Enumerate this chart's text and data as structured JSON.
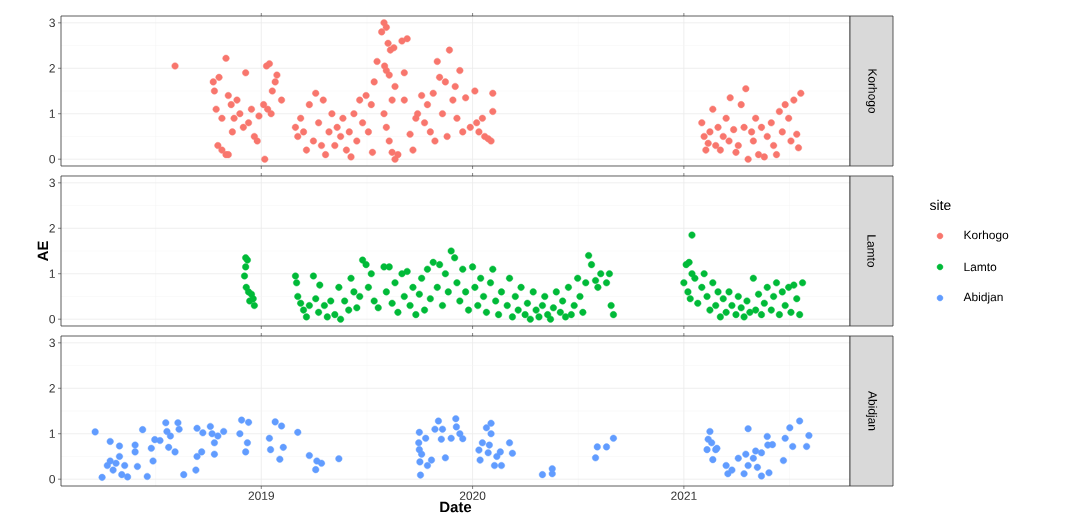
{
  "chart_data": [
    {
      "type": "scatter",
      "marker": "circle",
      "grid": true,
      "tick_labels": "y",
      "legend": "right",
      "legend_title": "site",
      "xlim": [
        "2018-01-20",
        "2021-10-15"
      ],
      "ylim": [
        -0.15,
        3.15
      ],
      "yticks": [
        0,
        1,
        2,
        3
      ],
      "xticks": [
        {
          "value": "2019-01-01",
          "label": null
        },
        {
          "value": "2020-01-01",
          "label": null
        },
        {
          "value": "2021-01-01",
          "label": null
        }
      ],
      "series": [
        {
          "name": "Korhogo",
          "color": "#f8766d",
          "x": [
            "2018-08-05",
            "2018-10-10",
            "2018-10-12",
            "2018-10-20",
            "2018-10-15",
            "2018-10-25",
            "2018-10-18",
            "2018-10-25",
            "2018-11-01",
            "2018-11-01",
            "2018-11-05",
            "2018-11-10",
            "2018-11-12",
            "2018-11-15",
            "2018-11-20",
            "2018-11-25",
            "2018-12-01",
            "2018-12-05",
            "2018-12-10",
            "2018-12-15",
            "2018-12-20",
            "2018-12-25",
            "2018-11-05",
            "2018-12-28",
            "2019-01-07",
            "2019-01-10",
            "2019-01-15",
            "2019-01-12",
            "2019-01-20",
            "2019-01-25",
            "2019-01-28",
            "2019-02-05",
            "2019-01-05",
            "2019-01-18",
            "2019-03-01",
            "2019-03-05",
            "2019-03-10",
            "2019-03-15",
            "2019-03-20",
            "2019-03-25",
            "2019-04-01",
            "2019-04-05",
            "2019-04-10",
            "2019-04-15",
            "2019-04-18",
            "2019-04-22",
            "2019-04-28",
            "2019-05-03",
            "2019-05-08",
            "2019-05-12",
            "2019-05-18",
            "2019-05-22",
            "2019-05-28",
            "2019-06-02",
            "2019-06-05",
            "2019-06-10",
            "2019-06-15",
            "2019-06-20",
            "2019-06-25",
            "2019-07-01",
            "2019-07-05",
            "2019-07-10",
            "2019-07-15",
            "2019-07-12",
            "2019-07-20",
            "2019-07-28",
            "2019-08-01",
            "2019-08-05",
            "2019-08-08",
            "2019-08-12",
            "2019-08-18",
            "2019-08-05",
            "2019-08-10",
            "2019-08-02",
            "2019-08-01",
            "2019-08-05",
            "2019-08-10",
            "2019-08-15",
            "2019-08-20",
            "2019-08-25",
            "2019-08-15",
            "2019-08-20",
            "2019-09-01",
            "2019-09-10",
            "2019-09-05",
            "2019-09-05",
            "2019-09-15",
            "2019-09-20",
            "2019-09-25",
            "2019-09-28",
            "2019-10-05",
            "2019-10-10",
            "2019-10-15",
            "2019-10-20",
            "2019-10-25",
            "2019-10-28",
            "2019-11-01",
            "2019-11-05",
            "2019-11-10",
            "2019-11-15",
            "2019-11-18",
            "2019-11-22",
            "2019-11-28",
            "2019-12-02",
            "2019-12-05",
            "2019-12-10",
            "2019-12-15",
            "2019-12-20",
            "2019-12-28",
            "2020-01-05",
            "2020-01-08",
            "2020-01-12",
            "2020-01-18",
            "2020-01-22",
            "2020-01-28",
            "2020-02-02",
            "2020-02-05",
            "2020-02-05",
            "2021-02-01",
            "2021-02-05",
            "2021-02-08",
            "2021-02-12",
            "2021-02-15",
            "2021-02-20",
            "2021-02-25",
            "2021-03-01",
            "2021-03-05",
            "2021-03-10",
            "2021-03-15",
            "2021-03-20",
            "2021-03-22",
            "2021-03-28",
            "2021-04-01",
            "2021-04-05",
            "2021-04-10",
            "2021-04-15",
            "2021-04-18",
            "2021-04-22",
            "2021-04-28",
            "2021-05-01",
            "2021-05-05",
            "2021-05-10",
            "2021-05-15",
            "2021-05-20",
            "2021-05-25",
            "2021-06-01",
            "2021-06-05",
            "2021-06-10",
            "2021-06-15",
            "2021-06-20",
            "2021-06-25",
            "2021-07-01",
            "2021-07-05",
            "2021-07-10",
            "2021-07-15",
            "2021-07-18",
            "2021-07-22"
          ],
          "values": [
            2.05,
            1.7,
            1.5,
            1.8,
            1.1,
            0.9,
            0.3,
            0.2,
            0.1,
            2.22,
            1.4,
            1.2,
            0.6,
            0.9,
            1.3,
            1.0,
            0.7,
            1.9,
            0.8,
            1.1,
            0.5,
            0.4,
            0.1,
            0.95,
            0.0,
            2.05,
            2.1,
            1.1,
            1.5,
            1.7,
            1.85,
            1.3,
            1.2,
            1.0,
            0.7,
            0.5,
            0.9,
            0.6,
            0.2,
            1.2,
            0.4,
            1.45,
            0.8,
            0.3,
            1.3,
            0.1,
            0.6,
            1.0,
            0.3,
            0.7,
            0.5,
            0.9,
            0.2,
            0.6,
            0.05,
            1.0,
            0.4,
            1.3,
            0.8,
            1.4,
            0.6,
            1.2,
            1.7,
            0.15,
            2.15,
            2.8,
            3.0,
            2.9,
            2.55,
            2.4,
            2.45,
            1.95,
            1.85,
            2.05,
            1.0,
            0.7,
            0.4,
            0.15,
            0.0,
            0.1,
            1.3,
            1.6,
            2.6,
            2.65,
            1.9,
            1.3,
            0.55,
            0.2,
            0.9,
            1.0,
            1.4,
            0.8,
            1.2,
            0.6,
            1.45,
            0.4,
            2.15,
            1.8,
            1.0,
            1.7,
            0.5,
            2.4,
            1.3,
            1.6,
            0.9,
            1.95,
            0.6,
            1.35,
            0.7,
            1.5,
            0.8,
            0.6,
            0.9,
            0.5,
            0.45,
            0.4,
            1.45,
            1.05,
            0.8,
            0.5,
            0.2,
            0.35,
            0.6,
            1.1,
            0.3,
            0.7,
            0.2,
            0.5,
            0.9,
            0.4,
            1.35,
            0.65,
            0.15,
            0.3,
            1.2,
            0.7,
            1.55,
            0.0,
            0.6,
            0.4,
            0.9,
            0.1,
            0.7,
            0.05,
            0.5,
            0.8,
            0.3,
            0.1,
            1.05,
            0.6,
            1.2,
            0.9,
            0.4,
            1.3,
            0.55,
            0.25,
            1.45
          ]
        }
      ]
    },
    {
      "type": "scatter",
      "marker": "circle",
      "grid": true,
      "tick_labels": "y",
      "ylabel": "AE",
      "legend": "right",
      "xlim": [
        "2018-01-20",
        "2021-10-15"
      ],
      "ylim": [
        -0.15,
        3.15
      ],
      "yticks": [
        0,
        1,
        2,
        3
      ],
      "xticks": [
        {
          "value": "2019-01-01",
          "label": null
        },
        {
          "value": "2020-01-01",
          "label": null
        },
        {
          "value": "2021-01-01",
          "label": null
        }
      ],
      "series": [
        {
          "name": "Lamto",
          "color": "#00ba38",
          "x": [
            "2018-12-05",
            "2018-12-08",
            "2018-12-05",
            "2018-12-03",
            "2018-12-06",
            "2018-12-10",
            "2018-12-15",
            "2018-12-18",
            "2018-12-20",
            "2018-12-12",
            "2019-03-01",
            "2019-03-03",
            "2019-03-05",
            "2019-03-10",
            "2019-03-15",
            "2019-03-20",
            "2019-03-25",
            "2019-04-01",
            "2019-04-05",
            "2019-04-10",
            "2019-04-12",
            "2019-04-20",
            "2019-04-25",
            "2019-05-01",
            "2019-05-08",
            "2019-05-15",
            "2019-05-18",
            "2019-05-25",
            "2019-06-01",
            "2019-06-05",
            "2019-06-10",
            "2019-06-15",
            "2019-06-20",
            "2019-06-25",
            "2019-07-01",
            "2019-07-05",
            "2019-07-10",
            "2019-07-15",
            "2019-07-22",
            "2019-08-01",
            "2019-08-05",
            "2019-08-10",
            "2019-08-15",
            "2019-08-20",
            "2019-08-25",
            "2019-09-01",
            "2019-09-05",
            "2019-09-10",
            "2019-09-15",
            "2019-09-20",
            "2019-09-25",
            "2019-10-01",
            "2019-10-05",
            "2019-10-10",
            "2019-10-15",
            "2019-10-20",
            "2019-10-25",
            "2019-11-01",
            "2019-11-05",
            "2019-11-10",
            "2019-11-15",
            "2019-11-20",
            "2019-11-25",
            "2019-12-01",
            "2019-12-05",
            "2019-12-10",
            "2019-12-15",
            "2019-12-20",
            "2019-12-25",
            "2020-01-01",
            "2020-01-05",
            "2020-01-10",
            "2020-01-15",
            "2020-01-20",
            "2020-01-25",
            "2020-02-01",
            "2020-02-05",
            "2020-02-10",
            "2020-02-15",
            "2020-02-20",
            "2020-03-01",
            "2020-03-05",
            "2020-03-10",
            "2020-03-15",
            "2020-03-20",
            "2020-03-25",
            "2020-04-01",
            "2020-04-05",
            "2020-04-10",
            "2020-04-15",
            "2020-04-20",
            "2020-04-25",
            "2020-05-01",
            "2020-05-05",
            "2020-05-10",
            "2020-05-15",
            "2020-05-20",
            "2020-05-25",
            "2020-06-01",
            "2020-06-05",
            "2020-06-10",
            "2020-06-15",
            "2020-06-20",
            "2020-06-25",
            "2020-07-01",
            "2020-07-05",
            "2020-07-10",
            "2020-07-15",
            "2020-07-20",
            "2020-07-25",
            "2020-08-01",
            "2020-08-05",
            "2020-08-10",
            "2020-08-20",
            "2020-08-25",
            "2020-08-28",
            "2020-09-01",
            "2021-01-01",
            "2021-01-05",
            "2021-01-10",
            "2021-01-15",
            "2021-01-08",
            "2021-01-12",
            "2021-01-15",
            "2021-01-20",
            "2021-01-25",
            "2021-02-01",
            "2021-02-05",
            "2021-02-10",
            "2021-02-15",
            "2021-02-20",
            "2021-02-25",
            "2021-03-01",
            "2021-03-05",
            "2021-03-10",
            "2021-03-15",
            "2021-03-20",
            "2021-03-25",
            "2021-04-01",
            "2021-04-05",
            "2021-04-10",
            "2021-04-15",
            "2021-04-20",
            "2021-04-25",
            "2021-05-01",
            "2021-05-05",
            "2021-05-10",
            "2021-05-15",
            "2021-05-20",
            "2021-05-25",
            "2021-06-01",
            "2021-06-05",
            "2021-06-10",
            "2021-06-15",
            "2021-06-20",
            "2021-06-25",
            "2021-07-01",
            "2021-07-05",
            "2021-07-10",
            "2021-07-15",
            "2021-07-20",
            "2021-07-25"
          ],
          "values": [
            1.35,
            1.3,
            1.15,
            0.95,
            0.7,
            0.6,
            0.55,
            0.45,
            0.3,
            0.4,
            0.95,
            0.8,
            0.5,
            0.35,
            0.2,
            0.05,
            0.3,
            0.95,
            0.45,
            0.15,
            0.75,
            0.3,
            0.05,
            0.4,
            0.1,
            0.7,
            0.0,
            0.4,
            0.2,
            0.9,
            0.6,
            0.25,
            0.5,
            1.3,
            1.2,
            0.7,
            1.0,
            0.4,
            0.25,
            1.15,
            0.6,
            1.15,
            0.35,
            0.8,
            0.15,
            1.0,
            0.5,
            1.05,
            0.3,
            0.7,
            0.1,
            0.55,
            0.9,
            0.2,
            1.1,
            0.45,
            1.25,
            0.7,
            1.2,
            0.3,
            1.0,
            0.6,
            1.5,
            1.35,
            0.8,
            0.4,
            1.1,
            0.6,
            0.2,
            1.15,
            0.7,
            0.3,
            0.9,
            0.5,
            0.15,
            0.8,
            1.1,
            0.4,
            0.1,
            0.6,
            0.3,
            0.9,
            0.05,
            0.5,
            0.2,
            0.7,
            0.1,
            0.35,
            0.0,
            0.6,
            0.2,
            0.05,
            0.3,
            0.5,
            0.1,
            0.0,
            0.25,
            0.6,
            0.15,
            0.4,
            0.05,
            0.7,
            0.1,
            0.3,
            0.9,
            0.5,
            0.15,
            0.8,
            1.4,
            1.2,
            0.85,
            0.7,
            1.0,
            0.8,
            1.0,
            0.3,
            0.1,
            0.8,
            1.2,
            1.25,
            1.0,
            0.6,
            0.45,
            1.85,
            0.9,
            0.35,
            0.7,
            1.0,
            0.5,
            0.2,
            0.8,
            0.3,
            0.6,
            0.05,
            0.45,
            0.15,
            0.6,
            0.3,
            0.1,
            0.5,
            0.25,
            0.05,
            0.4,
            0.15,
            0.9,
            0.2,
            0.55,
            0.1,
            0.35,
            0.7,
            0.2,
            0.5,
            0.8,
            0.1,
            0.6,
            0.3,
            0.7,
            0.15,
            0.75,
            0.45,
            0.1,
            0.8
          ]
        }
      ]
    },
    {
      "type": "scatter",
      "marker": "circle",
      "grid": true,
      "xlabel": "Date",
      "legend": "right",
      "xlim": [
        "2018-01-20",
        "2021-10-15"
      ],
      "ylim": [
        -0.15,
        3.15
      ],
      "yticks": [
        0,
        1,
        2,
        3
      ],
      "xticks": [
        {
          "value": "2019-01-01",
          "label": "2019"
        },
        {
          "value": "2020-01-01",
          "label": "2020"
        },
        {
          "value": "2021-01-01",
          "label": "2021"
        }
      ],
      "series": [
        {
          "name": "Abidjan",
          "color": "#619cff",
          "x": [
            "2018-03-20",
            "2018-04-01",
            "2018-04-15",
            "2018-05-01",
            "2018-04-10",
            "2018-04-15",
            "2018-04-20",
            "2018-04-25",
            "2018-05-01",
            "2018-05-05",
            "2018-05-10",
            "2018-05-15",
            "2018-05-28",
            "2018-05-28",
            "2018-06-10",
            "2018-06-01",
            "2018-06-18",
            "2018-06-25",
            "2018-06-28",
            "2018-07-01",
            "2018-07-10",
            "2018-07-20",
            "2018-07-22",
            "2018-07-28",
            "2018-08-10",
            "2018-08-12",
            "2018-07-25",
            "2018-08-05",
            "2018-08-20",
            "2018-09-10",
            "2018-09-12",
            "2018-09-12",
            "2018-09-20",
            "2018-09-22",
            "2018-10-05",
            "2018-10-08",
            "2018-10-12",
            "2018-10-12",
            "2018-10-18",
            "2018-10-28",
            "2018-11-28",
            "2018-12-10",
            "2018-11-25",
            "2018-12-08",
            "2018-12-05",
            "2019-01-15",
            "2019-01-17",
            "2019-01-25",
            "2019-02-05",
            "2019-02-08",
            "2019-02-02",
            "2019-03-05",
            "2019-03-25",
            "2019-04-07",
            "2019-04-05",
            "2019-04-15",
            "2019-05-15",
            "2019-10-01",
            "2019-09-30",
            "2019-10-01",
            "2019-10-05",
            "2019-10-02",
            "2019-10-03",
            "2019-10-12",
            "2019-10-15",
            "2019-10-22",
            "2019-11-03",
            "2019-10-28",
            "2019-11-10",
            "2019-11-08",
            "2019-11-15",
            "2019-12-03",
            "2019-12-04",
            "2019-12-10",
            "2019-12-15",
            "2019-11-25",
            "2020-01-12",
            "2020-01-14",
            "2020-01-18",
            "2020-01-25",
            "2020-02-02",
            "2020-02-02",
            "2020-01-30",
            "2020-01-28",
            "2020-02-08",
            "2020-02-12",
            "2020-02-18",
            "2020-02-20",
            "2020-03-05",
            "2020-03-10",
            "2020-05-01",
            "2020-05-18",
            "2020-05-18",
            "2020-08-01",
            "2020-08-04",
            "2020-08-20",
            "2020-09-01",
            "2021-02-15",
            "2021-02-12",
            "2021-02-18",
            "2021-02-10",
            "2021-02-25",
            "2021-02-27",
            "2021-02-20",
            "2021-03-15",
            "2021-03-18",
            "2021-03-25",
            "2021-04-05",
            "2021-04-15",
            "2021-04-18",
            "2021-04-22",
            "2021-04-22",
            "2021-05-01",
            "2021-05-05",
            "2021-05-08",
            "2021-05-15",
            "2021-05-15",
            "2021-05-25",
            "2021-05-26",
            "2021-05-28",
            "2021-06-03",
            "2021-06-22",
            "2021-06-25",
            "2021-07-03",
            "2021-07-08",
            "2021-07-20",
            "2021-08-01",
            "2021-08-05"
          ],
          "values": [
            1.04,
            0.04,
            0.83,
            0.73,
            0.3,
            0.4,
            0.2,
            0.35,
            0.5,
            0.1,
            0.3,
            0.05,
            0.75,
            0.6,
            1.09,
            0.28,
            0.06,
            0.68,
            0.4,
            0.87,
            0.85,
            1.24,
            1.05,
            0.95,
            1.24,
            1.1,
            0.7,
            0.6,
            0.1,
            0.2,
            1.12,
            0.5,
            0.6,
            1.02,
            1.16,
            1.0,
            0.8,
            0.55,
            0.95,
            1.05,
            1.3,
            1.25,
            1.0,
            0.8,
            0.6,
            0.9,
            0.65,
            1.26,
            1.17,
            0.7,
            0.44,
            1.03,
            0.52,
            0.4,
            0.21,
            0.35,
            0.45,
            1.03,
            0.8,
            0.65,
            0.55,
            0.38,
            0.09,
            0.9,
            0.3,
            0.42,
            1.28,
            1.1,
            1.1,
            0.88,
            0.47,
            1.33,
            1.15,
            1.0,
            0.89,
            0.9,
            0.64,
            0.42,
            0.8,
            1.13,
            1.23,
            1.0,
            0.75,
            0.58,
            0.3,
            0.5,
            0.6,
            0.3,
            0.8,
            0.57,
            0.1,
            0.23,
            0.12,
            0.47,
            0.71,
            0.71,
            0.9,
            1.05,
            0.88,
            0.8,
            0.65,
            0.65,
            0.68,
            0.43,
            0.3,
            0.12,
            0.2,
            0.46,
            0.12,
            0.55,
            1.11,
            0.3,
            0.46,
            0.62,
            0.26,
            0.07,
            0.58,
            0.94,
            0.75,
            0.14,
            0.76,
            0.41,
            0.9,
            1.13,
            0.72,
            1.28,
            0.72,
            0.96
          ]
        }
      ]
    }
  ]
}
